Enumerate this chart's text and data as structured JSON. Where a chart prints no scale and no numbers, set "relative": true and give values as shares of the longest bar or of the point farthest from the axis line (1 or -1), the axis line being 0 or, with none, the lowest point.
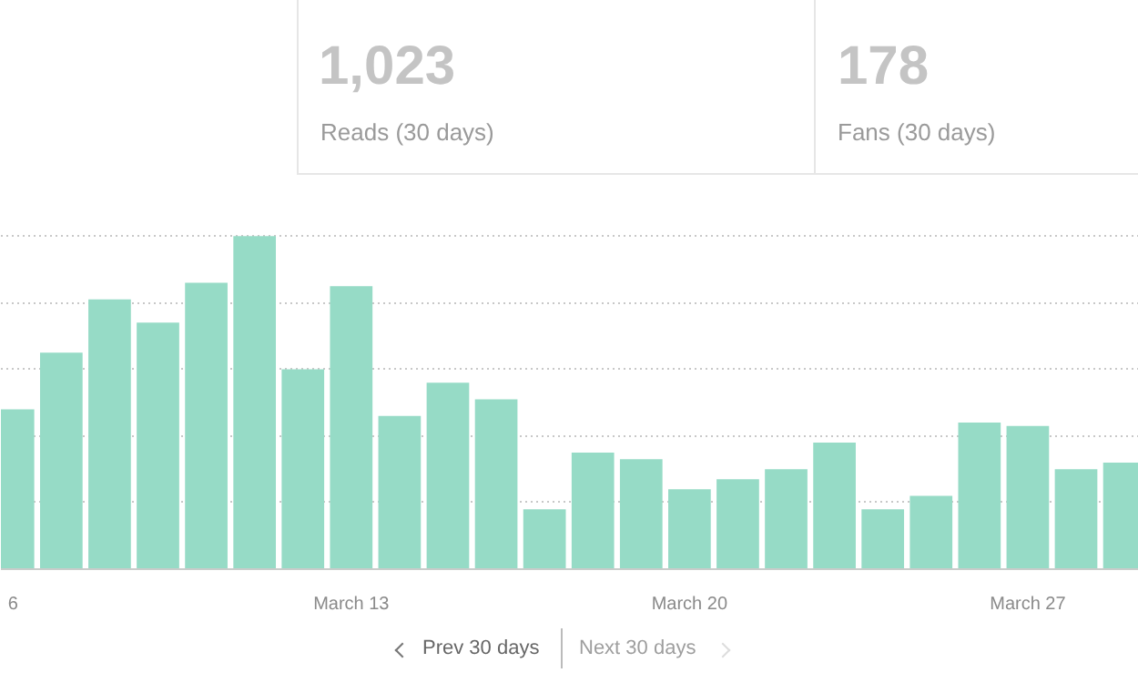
{
  "chart_data": {
    "type": "bar",
    "relative": true,
    "color": "#96dbc6",
    "categories": [
      "6",
      null,
      null,
      null,
      null,
      null,
      null,
      "March 13",
      null,
      null,
      null,
      null,
      null,
      null,
      "March 20",
      null,
      null,
      null,
      null,
      null,
      null,
      "March 27",
      null,
      null
    ],
    "values": [
      0.48,
      0.65,
      0.81,
      0.74,
      0.86,
      1,
      0.6,
      0.85,
      0.46,
      0.56,
      0.51,
      0.18,
      0.35,
      0.33,
      0.24,
      0.27,
      0.3,
      0.38,
      0.18,
      0.22,
      0.44,
      0.43,
      0.3,
      0.32
    ],
    "grid": "y",
    "annotations": [
      "1,023",
      "Reads (30 days)",
      "178",
      "Fans (30 days)",
      "Prev 30 days",
      "Next 30 days"
    ]
  }
}
